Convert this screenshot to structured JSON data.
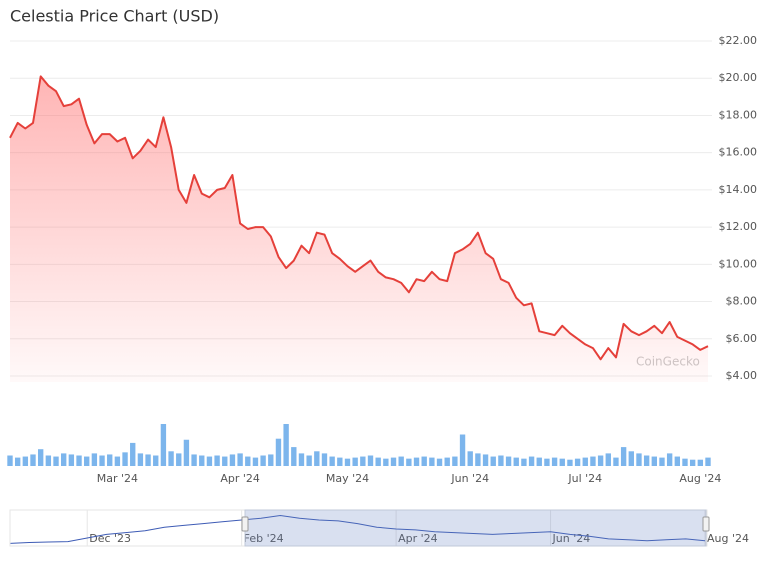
{
  "chart_data": {
    "type": "line",
    "title": "Celestia Price Chart (USD)",
    "watermark": "CoinGecko",
    "categories": [
      null,
      null,
      null,
      null,
      null,
      null,
      null,
      null,
      null,
      null,
      null,
      null,
      null,
      null,
      "Mar '24",
      null,
      null,
      null,
      null,
      null,
      null,
      null,
      null,
      null,
      null,
      null,
      null,
      null,
      null,
      null,
      "Apr '24",
      null,
      null,
      null,
      null,
      null,
      null,
      null,
      null,
      null,
      null,
      null,
      null,
      null,
      "May '24",
      null,
      null,
      null,
      null,
      null,
      null,
      null,
      null,
      null,
      null,
      null,
      null,
      null,
      null,
      null,
      "Jun '24",
      null,
      null,
      null,
      null,
      null,
      null,
      null,
      null,
      null,
      null,
      null,
      null,
      null,
      null,
      "Jul '24",
      null,
      null,
      null,
      null,
      null,
      null,
      null,
      null,
      null,
      null,
      null,
      null,
      null,
      null,
      "Aug '24",
      null
    ],
    "series": [
      {
        "color": "#e5403a",
        "values": [
          16.8,
          17.6,
          17.3,
          17.6,
          20.1,
          19.6,
          19.3,
          18.5,
          18.6,
          18.9,
          17.5,
          16.5,
          17.0,
          17.0,
          16.6,
          16.8,
          15.7,
          16.1,
          16.7,
          16.3,
          17.9,
          16.3,
          14.0,
          13.3,
          14.8,
          13.8,
          13.6,
          14.0,
          14.1,
          14.8,
          12.2,
          11.9,
          12.0,
          12.0,
          11.5,
          10.4,
          9.8,
          10.2,
          11.0,
          10.6,
          11.7,
          11.6,
          10.6,
          10.3,
          9.9,
          9.6,
          9.9,
          10.2,
          9.6,
          9.3,
          9.2,
          9.0,
          8.5,
          9.2,
          9.1,
          9.6,
          9.2,
          9.1,
          10.6,
          10.8,
          11.1,
          11.7,
          10.6,
          10.3,
          9.2,
          9.0,
          8.2,
          7.8,
          7.9,
          6.4,
          6.3,
          6.2,
          6.7,
          6.3,
          6.0,
          5.7,
          5.5,
          4.9,
          5.5,
          5.0,
          6.8,
          6.4,
          6.2,
          6.4,
          6.7,
          6.3,
          6.9,
          6.1,
          5.9,
          5.7,
          5.4,
          5.6
        ]
      }
    ],
    "volume": {
      "color": "#7cb5ec",
      "values": [
        10,
        8,
        9,
        11,
        16,
        10,
        9,
        12,
        11,
        10,
        9,
        12,
        10,
        11,
        9,
        13,
        22,
        12,
        11,
        10,
        40,
        14,
        12,
        25,
        11,
        10,
        9,
        10,
        9,
        11,
        12,
        9,
        8,
        10,
        11,
        26,
        40,
        18,
        12,
        10,
        14,
        12,
        9,
        8,
        7,
        8,
        9,
        10,
        8,
        7,
        8,
        9,
        7,
        8,
        9,
        8,
        7,
        8,
        9,
        30,
        14,
        12,
        11,
        9,
        10,
        9,
        8,
        7,
        9,
        8,
        7,
        8,
        7,
        6,
        7,
        8,
        9,
        10,
        12,
        8,
        18,
        14,
        12,
        10,
        9,
        8,
        12,
        9,
        7,
        6,
        6,
        8
      ]
    },
    "ylim": [
      4,
      22
    ],
    "yticks": [
      {
        "value": 4,
        "label": "$4.00"
      },
      {
        "value": 6,
        "label": "$6.00"
      },
      {
        "value": 8,
        "label": "$8.00"
      },
      {
        "value": 10,
        "label": "$10.00"
      },
      {
        "value": 12,
        "label": "$12.00"
      },
      {
        "value": 14,
        "label": "$14.00"
      },
      {
        "value": 16,
        "label": "$16.00"
      },
      {
        "value": 18,
        "label": "$18.00"
      },
      {
        "value": 20,
        "label": "$20.00"
      },
      {
        "value": 22,
        "label": "$22.00"
      }
    ],
    "grid": true,
    "navigator": {
      "color": "#3d5bb5",
      "categories": [
        null,
        null,
        null,
        null,
        "Dec '23",
        null,
        null,
        null,
        null,
        null,
        null,
        null,
        "Feb '24",
        null,
        null,
        null,
        null,
        null,
        null,
        null,
        "Apr '24",
        null,
        null,
        null,
        null,
        null,
        null,
        null,
        "Jun '24",
        null,
        null,
        null,
        null,
        null,
        null,
        null,
        "Aug '24"
      ],
      "values": [
        4,
        4.5,
        4.8,
        5,
        7,
        9,
        10,
        11,
        13,
        14,
        15,
        16,
        17,
        18,
        19.5,
        18,
        17,
        16.5,
        15,
        13,
        12,
        11.5,
        10.5,
        10,
        9.5,
        9,
        9.5,
        10,
        10.5,
        9,
        8,
        6.5,
        6,
        5.5,
        6,
        6.5,
        5.5
      ],
      "ylim": [
        2,
        22
      ]
    }
  }
}
